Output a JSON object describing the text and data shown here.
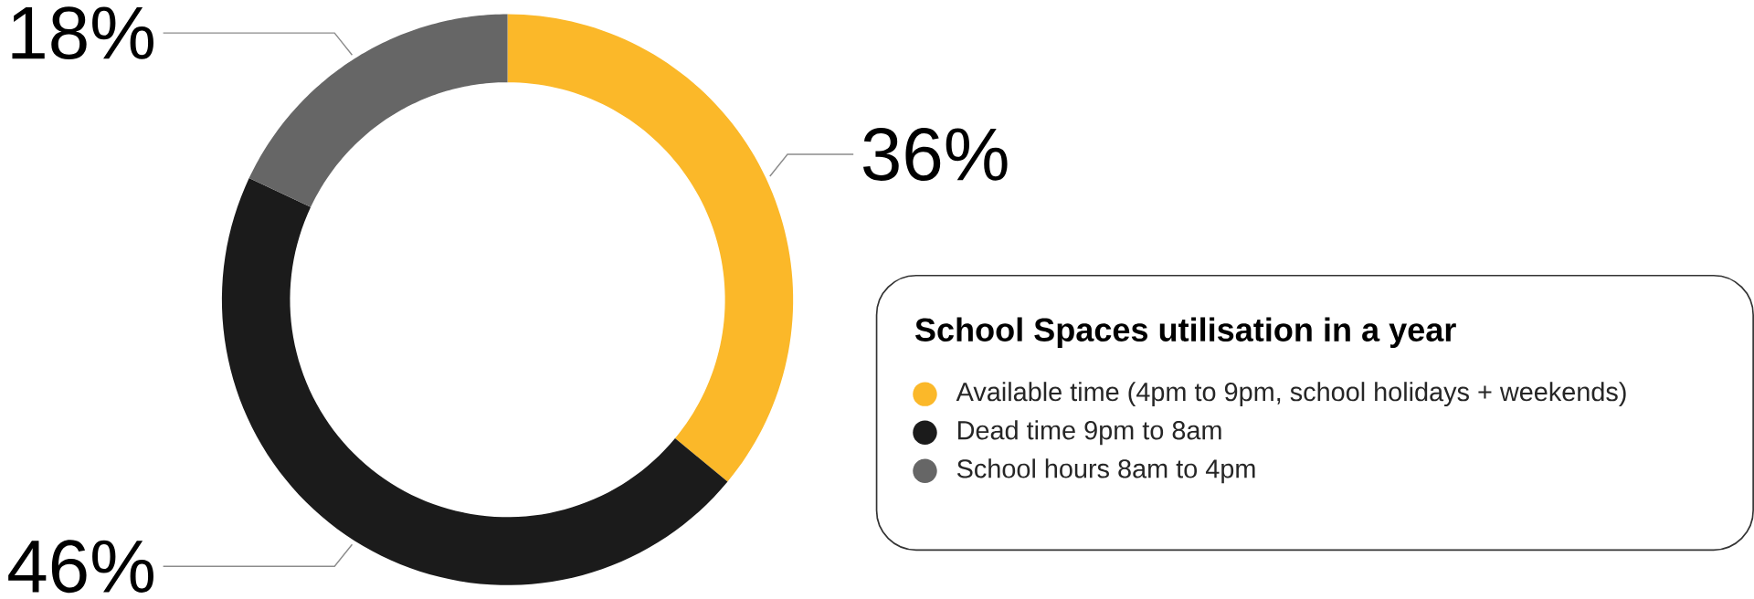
{
  "chart_data": {
    "type": "donut",
    "legend_title": "School Spaces utilisation in a year",
    "categories": [
      "Available time (4pm to 9pm, school holidays + weekends)",
      "Dead time 9pm to 8am",
      "School hours 8am to 4pm"
    ],
    "values": [
      36,
      46,
      18
    ],
    "value_labels": [
      "36%",
      "46%",
      "18%"
    ],
    "colors": [
      "#fbb829",
      "#1b1b1b",
      "#666666"
    ],
    "legend": "right"
  }
}
